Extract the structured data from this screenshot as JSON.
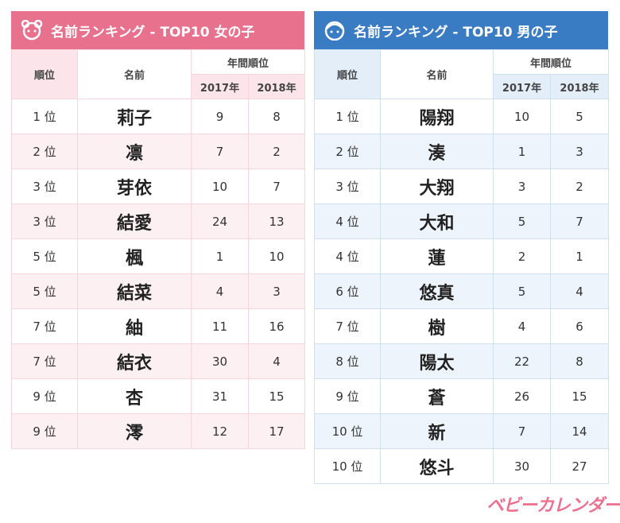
{
  "girls": {
    "title": "名前ランキング - TOP10 女の子",
    "headers": {
      "rank": "順位",
      "name": "名前",
      "annual": "年間順位",
      "y2017": "2017年",
      "y2018": "2018年"
    },
    "rows": [
      [
        "1 位",
        "莉子",
        9,
        8
      ],
      [
        "2 位",
        "凛",
        7,
        2
      ],
      [
        "3 位",
        "芽依",
        10,
        7
      ],
      [
        "3 位",
        "結愛",
        24,
        13
      ],
      [
        "5 位",
        "楓",
        1,
        10
      ],
      [
        "5 位",
        "結菜",
        4,
        3
      ],
      [
        "7 位",
        "紬",
        11,
        16
      ],
      [
        "7 位",
        "結衣",
        30,
        4
      ],
      [
        "9 位",
        "杏",
        31,
        15
      ],
      [
        "9 位",
        "澪",
        12,
        17
      ]
    ]
  },
  "boys": {
    "title": "名前ランキング - TOP10 男の子",
    "headers": {
      "rank": "順位",
      "name": "名前",
      "annual": "年間順位",
      "y2017": "2017年",
      "y2018": "2018年"
    },
    "rows": [
      [
        "1 位",
        "陽翔",
        10,
        5
      ],
      [
        "2 位",
        "湊",
        1,
        3
      ],
      [
        "3 位",
        "大翔",
        3,
        2
      ],
      [
        "4 位",
        "大和",
        5,
        7
      ],
      [
        "4 位",
        "蓮",
        2,
        1
      ],
      [
        "6 位",
        "悠真",
        5,
        4
      ],
      [
        "7 位",
        "樹",
        4,
        6
      ],
      [
        "8 位",
        "陽太",
        22,
        8
      ],
      [
        "9 位",
        "蒼",
        26,
        15
      ],
      [
        "10 位",
        "新",
        7,
        14
      ],
      [
        "10 位",
        "悠斗",
        30,
        27
      ]
    ]
  },
  "logo": "ベビーカレンダー"
}
